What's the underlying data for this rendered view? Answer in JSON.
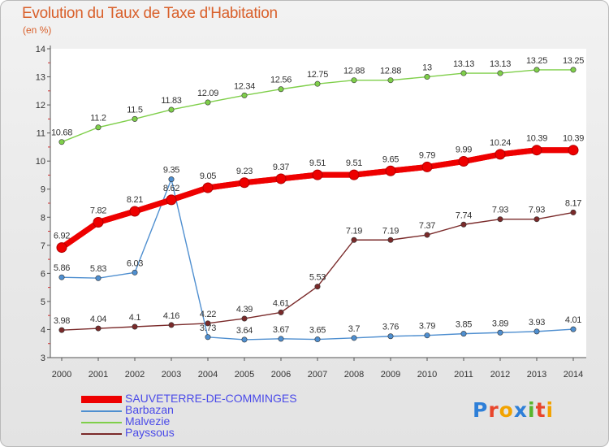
{
  "header": {
    "title": "Evolution du Taux de Taxe d'Habitation",
    "subtitle": "(en %)"
  },
  "logo": {
    "text": "Proxiti",
    "letter_colors": [
      "#2e7fd8",
      "#e8462c",
      "#f2a300",
      "#2e7fd8",
      "#58b52d",
      "#e8462c",
      "#f2a300"
    ]
  },
  "chart_data": {
    "type": "line",
    "title": "Evolution du Taux de Taxe d'Habitation",
    "ylabel": "(en %)",
    "xlabel": "",
    "x": [
      2000,
      2001,
      2002,
      2003,
      2004,
      2005,
      2006,
      2007,
      2008,
      2009,
      2010,
      2011,
      2012,
      2013,
      2014
    ],
    "ylim": [
      3,
      14
    ],
    "yticks": [
      3,
      4,
      5,
      6,
      7,
      8,
      9,
      10,
      11,
      12,
      13,
      14
    ],
    "grid": false,
    "legend_position": "bottom-left",
    "series": [
      {
        "name": "SAUVETERRE-DE-COMMINGES",
        "color": "#ee0000",
        "emphasis": true,
        "values": [
          6.92,
          7.82,
          8.21,
          8.62,
          9.05,
          9.23,
          9.37,
          9.51,
          9.51,
          9.65,
          9.79,
          9.99,
          10.24,
          10.39,
          10.39
        ],
        "labels": [
          "6.92",
          "7.82",
          "8.21",
          "8.62",
          "9.05",
          "9.23",
          "9.37",
          "9.51",
          "9.51",
          "9.65",
          "9.79",
          "9.99",
          "10.24",
          "10.39",
          "10.39"
        ]
      },
      {
        "name": "Barbazan",
        "color": "#4f8fd0",
        "values": [
          5.86,
          5.83,
          6.03,
          null,
          3.73,
          3.64,
          3.67,
          3.65,
          3.7,
          3.76,
          3.79,
          3.85,
          3.89,
          3.93,
          4.01
        ],
        "labels": [
          "5.86",
          "5.83",
          "6.03",
          "",
          "3.73",
          "3.64",
          "3.67",
          "3.65",
          "3.7",
          "3.76",
          "3.79",
          "3.85",
          "3.89",
          "3.93",
          "4.01"
        ]
      },
      {
        "name": "Barbazan",
        "color": "#4f8fd0",
        "hidden_in_legend": true,
        "values": [
          null,
          null,
          null,
          9.35,
          null,
          null,
          null,
          null,
          null,
          null,
          null,
          null,
          null,
          null,
          null
        ],
        "labels": [
          "",
          "",
          "",
          "9.35",
          "",
          "",
          "",
          "",
          "",
          "",
          "",
          "",
          "",
          "",
          ""
        ]
      },
      {
        "name": "Malvezie",
        "color": "#7fcf4a",
        "values": [
          10.68,
          11.2,
          11.5,
          11.83,
          12.09,
          12.34,
          12.56,
          12.75,
          12.88,
          12.88,
          13,
          13.13,
          13.13,
          13.25,
          13.25
        ],
        "labels": [
          "10.68",
          "11.2",
          "11.5",
          "11.83",
          "12.09",
          "12.34",
          "12.56",
          "12.75",
          "12.88",
          "12.88",
          "13",
          "13.13",
          "13.13",
          "13.25",
          "13.25"
        ]
      },
      {
        "name": "Payssous",
        "color": "#7a2a2a",
        "values": [
          3.98,
          4.04,
          4.1,
          4.16,
          4.22,
          4.39,
          4.61,
          5.53,
          7.19,
          7.19,
          7.37,
          7.74,
          7.93,
          7.93,
          8.17
        ],
        "labels": [
          "3.98",
          "4.04",
          "4.1",
          "4.16",
          "4.22",
          "4.39",
          "4.61",
          "5.53",
          "7.19",
          "7.19",
          "7.37",
          "7.74",
          "7.93",
          "7.93",
          "8.17"
        ]
      }
    ],
    "legend": [
      {
        "name": "SAUVETERRE-DE-COMMINGES",
        "color": "#ee0000",
        "emphasis": true
      },
      {
        "name": "Barbazan",
        "color": "#4f8fd0"
      },
      {
        "name": "Malvezie",
        "color": "#7fcf4a"
      },
      {
        "name": "Payssous",
        "color": "#7a2a2a"
      }
    ]
  }
}
